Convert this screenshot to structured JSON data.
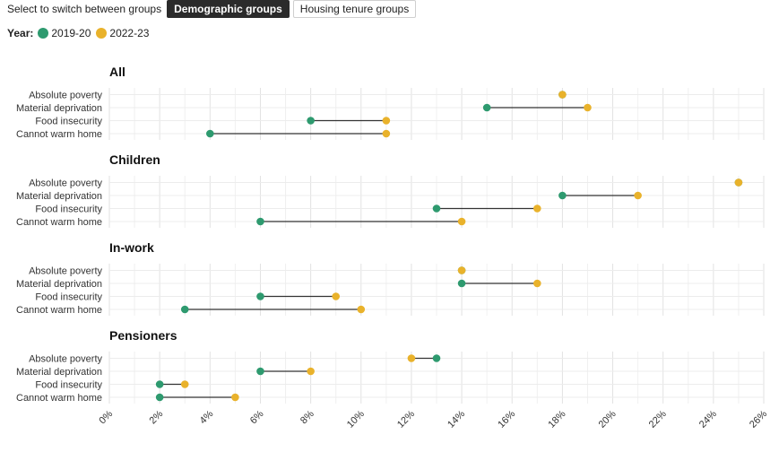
{
  "controls": {
    "hint": "Select to switch between groups",
    "buttons": [
      {
        "label": "Demographic groups",
        "active": true
      },
      {
        "label": "Housing tenure groups",
        "active": false
      }
    ]
  },
  "legend": {
    "title": "Year:",
    "items": [
      {
        "label": "2019-20",
        "color": "#2e9a6f"
      },
      {
        "label": "2022-23",
        "color": "#e9b22b"
      }
    ]
  },
  "chart_data": {
    "type": "dumbbell",
    "x_ticks": [
      "0%",
      "2%",
      "4%",
      "6%",
      "8%",
      "10%",
      "12%",
      "14%",
      "16%",
      "18%",
      "20%",
      "22%",
      "24%",
      "26%"
    ],
    "xlim": [
      0,
      26
    ],
    "grid": true,
    "series_names": [
      "2019-20",
      "2022-23"
    ],
    "panels": [
      {
        "title": "All",
        "rows": [
          {
            "label": "Absolute poverty",
            "v2019": 18,
            "v2022": 18
          },
          {
            "label": "Material deprivation",
            "v2019": 15,
            "v2022": 19
          },
          {
            "label": "Food insecurity",
            "v2019": 8,
            "v2022": 11
          },
          {
            "label": "Cannot warm home",
            "v2019": 4,
            "v2022": 11
          }
        ]
      },
      {
        "title": "Children",
        "rows": [
          {
            "label": "Absolute poverty",
            "v2019": 25,
            "v2022": 25
          },
          {
            "label": "Material deprivation",
            "v2019": 18,
            "v2022": 21
          },
          {
            "label": "Food insecurity",
            "v2019": 13,
            "v2022": 17
          },
          {
            "label": "Cannot warm home",
            "v2019": 6,
            "v2022": 14
          }
        ]
      },
      {
        "title": "In-work",
        "rows": [
          {
            "label": "Absolute poverty",
            "v2019": 14,
            "v2022": 14
          },
          {
            "label": "Material deprivation",
            "v2019": 14,
            "v2022": 17
          },
          {
            "label": "Food insecurity",
            "v2019": 6,
            "v2022": 9
          },
          {
            "label": "Cannot warm home",
            "v2019": 3,
            "v2022": 10
          }
        ]
      },
      {
        "title": "Pensioners",
        "rows": [
          {
            "label": "Absolute poverty",
            "v2019": 13,
            "v2022": 12
          },
          {
            "label": "Material deprivation",
            "v2019": 6,
            "v2022": 8
          },
          {
            "label": "Food insecurity",
            "v2019": 2,
            "v2022": 3
          },
          {
            "label": "Cannot warm home",
            "v2019": 2,
            "v2022": 5
          }
        ]
      }
    ]
  }
}
